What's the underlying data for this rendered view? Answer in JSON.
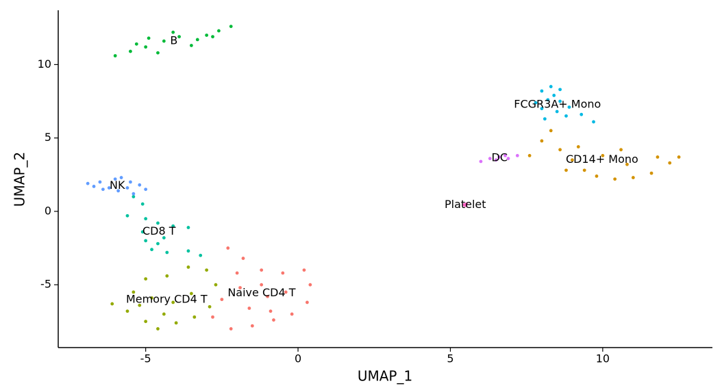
{
  "chart_data": {
    "type": "scatter",
    "x_label": "UMAP_1",
    "y_label": "UMAP_2",
    "xlim": [
      -7.87,
      13.6
    ],
    "ylim": [
      -9.28,
      13.7
    ],
    "xticks": [
      -5,
      0,
      5,
      10
    ],
    "yticks": [
      -5,
      0,
      5,
      10
    ],
    "series": [
      {
        "name": "Naive CD4 T",
        "color": "#F8766D",
        "x": [
          -2.3,
          -1.8,
          -1.2,
          -0.5,
          0.2,
          0.4,
          0.3,
          -0.2,
          -0.8,
          -1.5,
          -2.2,
          -2.8,
          -2.5,
          -1.9,
          -1.0,
          -0.4,
          -1.6,
          -0.9,
          -2.0,
          -1.2
        ],
        "y": [
          -2.5,
          -3.2,
          -4.0,
          -4.2,
          -4.0,
          -5.0,
          -6.2,
          -7.0,
          -7.4,
          -7.8,
          -8.0,
          -7.2,
          -6.0,
          -5.2,
          -5.8,
          -5.5,
          -6.6,
          -6.8,
          -4.2,
          -5.0
        ]
      },
      {
        "name": "Memory CD4 T",
        "color": "#93AA00",
        "x": [
          -6.1,
          -5.6,
          -5.0,
          -4.6,
          -4.0,
          -3.4,
          -2.9,
          -2.7,
          -3.0,
          -3.6,
          -4.3,
          -5.0,
          -5.4,
          -4.8,
          -4.1,
          -3.5,
          -4.4,
          -5.2
        ],
        "y": [
          -6.3,
          -6.8,
          -7.5,
          -8.0,
          -7.6,
          -7.2,
          -6.5,
          -5.0,
          -4.0,
          -3.8,
          -4.4,
          -4.6,
          -5.5,
          -5.9,
          -6.2,
          -5.6,
          -7.0,
          -6.4
        ]
      },
      {
        "name": "CD14+ Mono",
        "color": "#D39200",
        "x": [
          7.6,
          8.0,
          8.3,
          8.6,
          9.0,
          9.4,
          9.8,
          10.4,
          11.0,
          11.6,
          12.2,
          12.5,
          11.8,
          10.8,
          10.0,
          9.2,
          8.8,
          10.6
        ],
        "y": [
          3.8,
          4.8,
          5.5,
          4.2,
          3.5,
          2.8,
          2.4,
          2.2,
          2.3,
          2.6,
          3.3,
          3.7,
          3.7,
          3.2,
          3.8,
          4.4,
          2.8,
          4.2
        ]
      },
      {
        "name": "B",
        "color": "#00BA38",
        "x": [
          -6.0,
          -5.5,
          -5.0,
          -4.6,
          -4.4,
          -3.9,
          -3.5,
          -3.0,
          -2.6,
          -2.2,
          -4.9,
          -4.1,
          -3.3,
          -5.3,
          -2.8
        ],
        "y": [
          10.6,
          10.9,
          11.2,
          10.8,
          11.6,
          11.9,
          11.3,
          12.0,
          12.3,
          12.6,
          11.8,
          12.2,
          11.7,
          11.4,
          11.9
        ]
      },
      {
        "name": "CD8 T",
        "color": "#00C19F",
        "x": [
          -5.4,
          -5.1,
          -5.6,
          -5.0,
          -4.6,
          -4.1,
          -3.6,
          -4.4,
          -5.0,
          -4.8,
          -4.3,
          -3.6,
          -3.2,
          -5.1,
          -4.6
        ],
        "y": [
          1.0,
          0.5,
          -0.3,
          -0.5,
          -0.8,
          -1.0,
          -1.1,
          -1.8,
          -2.0,
          -2.6,
          -2.8,
          -2.7,
          -3.0,
          -1.4,
          -2.2
        ]
      },
      {
        "name": "FCGR3A+ Mono",
        "color": "#00B9E3",
        "x": [
          8.0,
          8.3,
          8.6,
          8.2,
          8.6,
          8.0,
          8.5,
          8.1,
          8.8,
          9.3,
          8.9,
          7.8,
          8.4,
          9.7
        ],
        "y": [
          8.2,
          8.5,
          8.3,
          7.6,
          7.5,
          7.0,
          6.8,
          6.3,
          6.5,
          6.6,
          7.1,
          7.4,
          7.9,
          6.1
        ]
      },
      {
        "name": "NK",
        "color": "#619CFF",
        "x": [
          -6.9,
          -6.5,
          -6.2,
          -5.8,
          -5.5,
          -5.2,
          -5.0,
          -5.4,
          -5.9,
          -6.4,
          -6.0,
          -5.6,
          -6.7
        ],
        "y": [
          1.9,
          2.0,
          1.6,
          2.3,
          2.0,
          1.8,
          1.5,
          1.2,
          1.4,
          1.5,
          2.2,
          1.6,
          1.7
        ]
      },
      {
        "name": "DC",
        "color": "#DB72FB",
        "x": [
          6.0,
          6.3,
          6.6,
          6.9,
          7.2,
          6.5,
          6.8
        ],
        "y": [
          3.4,
          3.6,
          3.7,
          3.6,
          3.8,
          3.5,
          3.8
        ]
      },
      {
        "name": "Platelet",
        "color": "#FF61C3",
        "x": [
          5.45,
          5.5,
          5.52
        ],
        "y": [
          0.45,
          0.4,
          0.5
        ]
      }
    ]
  }
}
